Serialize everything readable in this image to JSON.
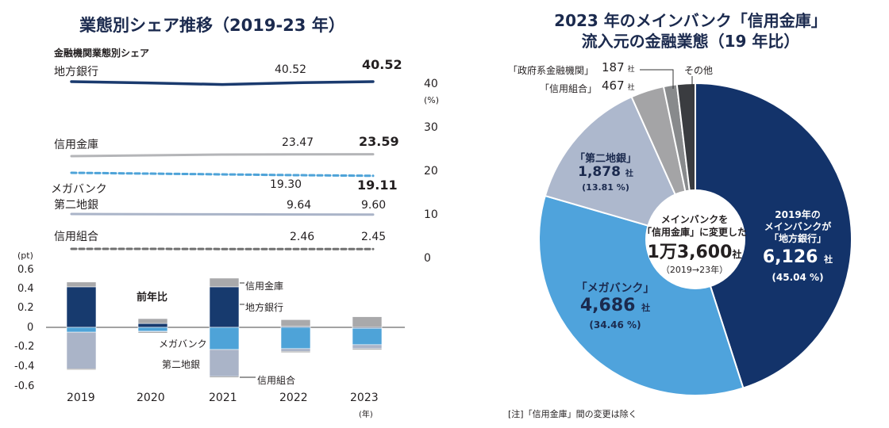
{
  "left": {
    "title": "業態別シェア推移（2019-23 年）",
    "subtitle": "金融機関業態別シェア",
    "right_axis": {
      "ticks": [
        "40",
        "30",
        "20",
        "10",
        "0"
      ],
      "unit": "(%)"
    },
    "share_lines": [
      {
        "name": "地方銀行",
        "value_2019": "40.52",
        "value_2023": "40.52",
        "color": "#1a3a6e",
        "style": "solid"
      },
      {
        "name": "信用金庫",
        "value_2019": "23.47",
        "value_2023": "23.59",
        "color": "#b4b5b8",
        "style": "solid"
      },
      {
        "name": "メガバンク",
        "value_2019": "19.30",
        "value_2023": "19.11",
        "color": "#4ea3d8",
        "style": "dashed"
      },
      {
        "name": "第二地銀",
        "value_2019": "9.64",
        "value_2023": "9.60",
        "color": "#aab4c8",
        "style": "solid"
      },
      {
        "name": "信用組合",
        "value_2019": "2.46",
        "value_2023": "2.45",
        "color": "#707070",
        "style": "dashed"
      }
    ],
    "yoy": {
      "axis_unit": "(pt)",
      "y_ticks": [
        "0.6",
        "0.4",
        "0.2",
        "0",
        "-0.2",
        "-0.4",
        "-0.6"
      ],
      "x_ticks": [
        "2019",
        "2020",
        "2021",
        "2022",
        "2023"
      ],
      "x_unit": "(年)",
      "label_zennenhi": "前年比",
      "segment_labels": {
        "shinkin": "信用金庫",
        "chigin": "地方銀行",
        "mega": "メガバンク",
        "daini": "第二地銀",
        "kumiai": "信用組合"
      }
    }
  },
  "right": {
    "title_line1": "2023 年のメインバンク「信用金庫」",
    "title_line2": "流入元の金融業態（19 年比）",
    "center": {
      "line1": "メインバンクを",
      "line2": "「信用金庫」に変更した",
      "num": "1万3,600",
      "unit": "社",
      "period": "（2019→23年）"
    },
    "slices": {
      "chigin": {
        "l1": "2019年の",
        "l2": "メインバンクが",
        "l3": "「地方銀行」",
        "count": "6,126",
        "unit": "社",
        "pct": "(45.04 %)"
      },
      "mega": {
        "l1": "「メガバンク」",
        "count": "4,686",
        "unit": "社",
        "pct": "(34.46 %)"
      },
      "daini": {
        "l1": "「第二地銀」",
        "count": "1,878",
        "unit": "社",
        "pct": "(13.81 %)"
      },
      "kumiai": {
        "l1": "「信用組合」",
        "count": "467",
        "unit": "社"
      },
      "seifu": {
        "l1": "「政府系金融機関」",
        "count": "187",
        "unit": "社"
      },
      "other": {
        "l1": "その他"
      }
    },
    "note": "[注]「信用金庫」間の変更は除く"
  },
  "chart_data": [
    {
      "type": "line",
      "title": "業態別シェア推移（2019-23 年）",
      "subtitle": "金融機関業態別シェア",
      "x": [
        "2019",
        "2020",
        "2021",
        "2022",
        "2023"
      ],
      "ylabel": "(%)",
      "ylim": [
        0,
        40
      ],
      "series": [
        {
          "name": "地方銀行",
          "values": [
            40.52,
            40.44,
            40.34,
            40.45,
            40.52
          ]
        },
        {
          "name": "信用金庫",
          "values": [
            23.47,
            23.52,
            23.57,
            23.58,
            23.59
          ]
        },
        {
          "name": "メガバンク",
          "values": [
            19.3,
            19.25,
            19.2,
            19.15,
            19.11
          ]
        },
        {
          "name": "第二地銀",
          "values": [
            9.64,
            9.63,
            9.62,
            9.61,
            9.6
          ]
        },
        {
          "name": "信用組合",
          "values": [
            2.46,
            2.46,
            2.45,
            2.45,
            2.45
          ]
        }
      ]
    },
    {
      "type": "bar",
      "title": "前年比",
      "categories": [
        "2019",
        "2020",
        "2021",
        "2022",
        "2023"
      ],
      "ylabel": "(pt)",
      "ylim": [
        -0.6,
        0.6
      ],
      "stacked": true,
      "series": [
        {
          "name": "地方銀行",
          "values": [
            0.42,
            0.04,
            0.42,
            0.01,
            -0.01
          ],
          "color": "#173a6e"
        },
        {
          "name": "信用金庫",
          "values": [
            0.05,
            0.05,
            0.09,
            0.07,
            0.11
          ],
          "color": "#a9a9ab"
        },
        {
          "name": "メガバンク",
          "values": [
            -0.05,
            -0.04,
            -0.23,
            -0.22,
            -0.17
          ],
          "color": "#4ea3d8"
        },
        {
          "name": "第二地銀",
          "values": [
            -0.38,
            -0.01,
            -0.28,
            -0.03,
            -0.04
          ],
          "color": "#aab4c8"
        },
        {
          "name": "信用組合",
          "values": [
            -0.01,
            -0.01,
            -0.01,
            -0.01,
            -0.01
          ],
          "color": "#707070"
        }
      ]
    },
    {
      "type": "pie",
      "title": "2023 年のメインバンク「信用金庫」流入元の金融業態（19 年比）",
      "total": "1万3,600社",
      "categories": [
        "地方銀行",
        "メガバンク",
        "第二地銀",
        "信用組合",
        "政府系金融機関",
        "その他"
      ],
      "values": [
        6126,
        4686,
        1878,
        467,
        187,
        256
      ],
      "percent": [
        45.04,
        34.46,
        13.81,
        3.43,
        1.38,
        1.88
      ],
      "colors": [
        "#13336a",
        "#4fa3dc",
        "#adb8cd",
        "#a4a4a6",
        "#888a8c",
        "#3a3c40"
      ]
    }
  ]
}
